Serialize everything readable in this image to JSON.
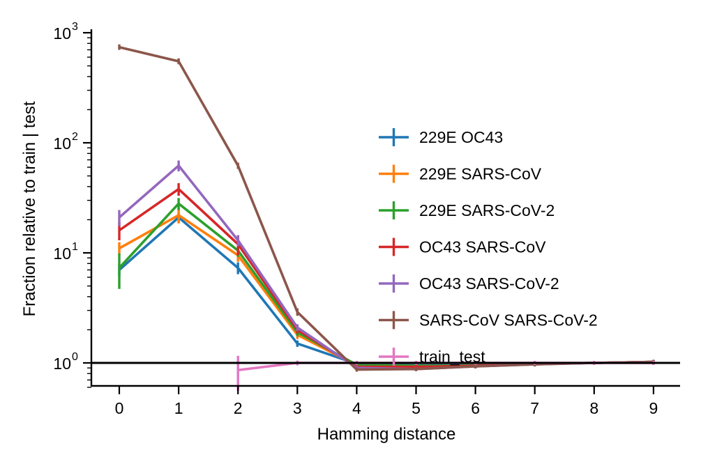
{
  "chart_data": {
    "type": "line",
    "title": "",
    "xlabel": "Hamming distance",
    "ylabel": "Fraction relative to train | test",
    "x_ticks": [
      0,
      1,
      2,
      3,
      4,
      5,
      6,
      7,
      8,
      9
    ],
    "y_scale": "log",
    "ylim": [
      0.6,
      1000
    ],
    "y_ticks": [
      {
        "value": 1,
        "base": "10",
        "exp": "0"
      },
      {
        "value": 10,
        "base": "10",
        "exp": "1"
      },
      {
        "value": 100,
        "base": "10",
        "exp": "2"
      },
      {
        "value": 1000,
        "base": "10",
        "exp": "3"
      }
    ],
    "reference_line": 1,
    "legend_position": "right",
    "grid": false,
    "series": [
      {
        "name": "229E OC43",
        "color": "#1f77b4",
        "x": [
          0,
          1,
          2,
          3,
          4,
          5,
          6,
          7,
          8,
          9
        ],
        "y": [
          7.0,
          21.0,
          7.3,
          1.5,
          0.98,
          0.95,
          0.96,
          0.98,
          1.0,
          1.02
        ],
        "err": [
          0.9,
          2.0,
          0.9,
          0.1,
          0,
          0,
          0,
          0,
          0,
          0
        ]
      },
      {
        "name": "229E SARS-CoV",
        "color": "#ff7f0e",
        "x": [
          0,
          1,
          2,
          3,
          4,
          5,
          6,
          7,
          8,
          9
        ],
        "y": [
          11.0,
          22.0,
          9.5,
          1.8,
          0.95,
          0.93,
          0.95,
          0.98,
          1.0,
          1.02
        ],
        "err": [
          1.5,
          3.5,
          1.2,
          0.15,
          0,
          0,
          0,
          0,
          0,
          0
        ]
      },
      {
        "name": "229E SARS-CoV-2",
        "color": "#2ca02c",
        "x": [
          0,
          1,
          2,
          3,
          4,
          5,
          6,
          7,
          8,
          9
        ],
        "y": [
          7.3,
          28.0,
          10.5,
          1.9,
          0.96,
          0.94,
          0.95,
          0.98,
          1.0,
          1.02
        ],
        "err": [
          2.6,
          3.5,
          1.3,
          0.15,
          0,
          0,
          0,
          0,
          0,
          0
        ]
      },
      {
        "name": "OC43 SARS-CoV",
        "color": "#d62728",
        "x": [
          0,
          1,
          2,
          3,
          4,
          5,
          6,
          7,
          8,
          9
        ],
        "y": [
          16.0,
          38.0,
          12.0,
          2.0,
          0.92,
          0.92,
          0.94,
          0.98,
          1.0,
          1.02
        ],
        "err": [
          3.0,
          5.0,
          2.5,
          0.15,
          0,
          0,
          0,
          0,
          0,
          0
        ]
      },
      {
        "name": "OC43 SARS-CoV-2",
        "color": "#9467bd",
        "x": [
          0,
          1,
          2,
          3,
          4,
          5,
          6,
          7,
          8,
          9
        ],
        "y": [
          21.0,
          62.0,
          13.0,
          2.1,
          0.9,
          0.88,
          0.93,
          0.97,
          1.0,
          1.02
        ],
        "err": [
          3.5,
          7.0,
          1.5,
          0.15,
          0,
          0,
          0,
          0,
          0,
          0
        ]
      },
      {
        "name": "SARS-CoV SARS-CoV-2",
        "color": "#8c564b",
        "x": [
          0,
          1,
          2,
          3,
          4,
          5,
          6,
          7,
          8,
          9
        ],
        "y": [
          740,
          550,
          62,
          2.9,
          0.87,
          0.88,
          0.93,
          0.97,
          1.0,
          1.02
        ],
        "err": [
          10,
          10,
          4,
          0.1,
          0,
          0,
          0,
          0,
          0,
          0
        ]
      },
      {
        "name": "train_test",
        "color": "#e377c2",
        "x": [
          2,
          3,
          4,
          5,
          6,
          7,
          8,
          9
        ],
        "y": [
          0.86,
          1.0,
          1.0,
          1.0,
          1.0,
          1.0,
          1.0,
          1.0
        ],
        "err": [
          0.3,
          0.05,
          0,
          0,
          0,
          0,
          0,
          0
        ]
      }
    ]
  }
}
